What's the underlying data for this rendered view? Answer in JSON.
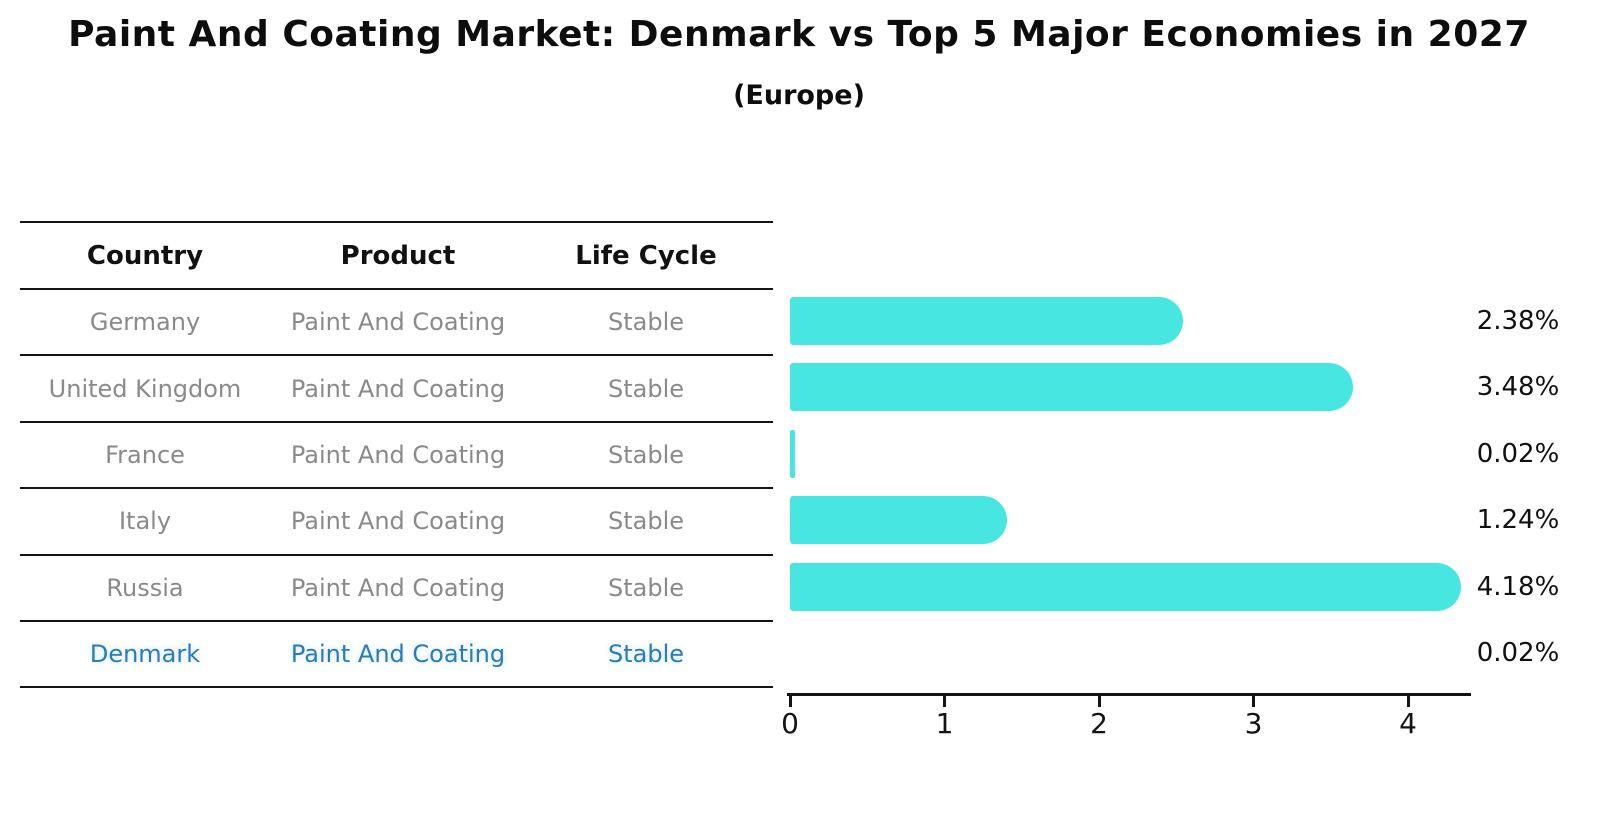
{
  "header": {
    "title": "Paint And Coating Market: Denmark vs Top 5 Major Economies in 2027",
    "subtitle": "(Europe)"
  },
  "table": {
    "columns": [
      "Country",
      "Product",
      "Life Cycle"
    ],
    "rows": [
      {
        "country": "Germany",
        "product": "Paint And Coating",
        "life_cycle": "Stable",
        "highlight": false
      },
      {
        "country": "United Kingdom",
        "product": "Paint And Coating",
        "life_cycle": "Stable",
        "highlight": false
      },
      {
        "country": "France",
        "product": "Paint And Coating",
        "life_cycle": "Stable",
        "highlight": false
      },
      {
        "country": "Italy",
        "product": "Paint And Coating",
        "life_cycle": "Stable",
        "highlight": false
      },
      {
        "country": "Russia",
        "product": "Paint And Coating",
        "life_cycle": "Stable",
        "highlight": false
      },
      {
        "country": "Denmark",
        "product": "Paint And Coating",
        "life_cycle": "Stable",
        "highlight": true
      }
    ]
  },
  "chart_data": {
    "type": "bar",
    "orientation": "horizontal",
    "title": "Paint And Coating Market: Denmark vs Top 5 Major Economies in 2027",
    "subtitle": "(Europe)",
    "categories": [
      "Germany",
      "United Kingdom",
      "France",
      "Italy",
      "Russia",
      "Denmark"
    ],
    "values": [
      2.38,
      3.48,
      0.02,
      1.24,
      4.18,
      0.02
    ],
    "labels": [
      "2.38%",
      "3.48%",
      "0.02%",
      "1.24%",
      "4.18%",
      "0.02%"
    ],
    "xlabel": "",
    "ylabel": "",
    "xticks": [
      0,
      1,
      2,
      3,
      4
    ],
    "xlim": [
      0,
      4.4
    ],
    "grid": false,
    "legend": null,
    "bar_color": "#48E6E1",
    "highlight_index": 5,
    "highlight_bar_color": "#3F8AC9",
    "highlight_text_color": "#2B7BBA",
    "axis_color": "#141414",
    "label_color": "#111111",
    "table_text_color": "#8A8A8A"
  }
}
